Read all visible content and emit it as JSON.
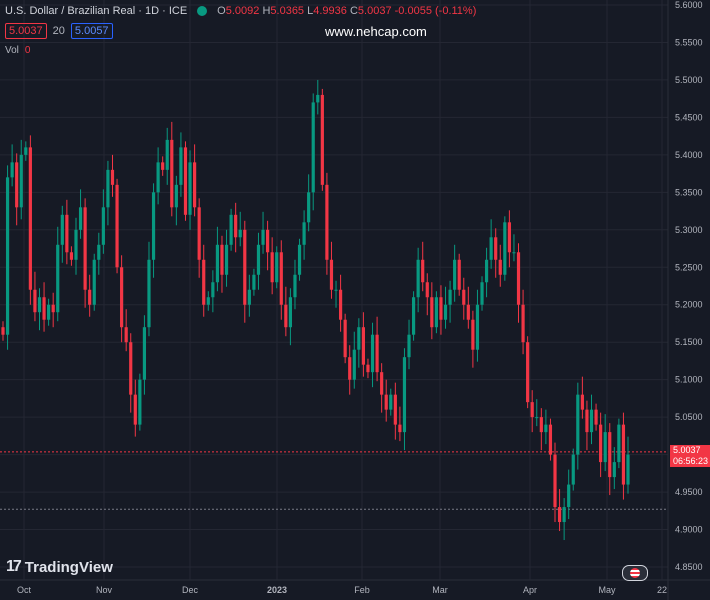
{
  "header": {
    "title": "U.S. Dollar / Brazilian Real · 1D · ICE",
    "open_label": "O",
    "open": "5.0092",
    "high_label": "H",
    "high": "5.0365",
    "low_label": "L",
    "low": "4.9936",
    "close_label": "C",
    "close": "5.0037",
    "change": "-0.0055 (-0.11%)"
  },
  "indicator": {
    "value_a": "5.0037",
    "period": "20",
    "value_b": "5.0057"
  },
  "volume": {
    "label": "Vol",
    "value": "0"
  },
  "watermark": "www.nehcap.com",
  "brand": "TradingView",
  "last_price": {
    "value": "5.0037",
    "countdown": "06:56:23"
  },
  "colors": {
    "up": "#089981",
    "down": "#f23645",
    "background": "#161a25",
    "grid": "#242733"
  },
  "chart_data": {
    "type": "candlestick",
    "title": "U.S. Dollar / Brazilian Real · 1D · ICE",
    "y_ticks": [
      "5.6000",
      "5.5500",
      "5.5000",
      "5.4500",
      "5.4000",
      "5.3500",
      "5.3000",
      "5.2500",
      "5.2000",
      "5.1500",
      "5.1000",
      "5.0500",
      "5.0000",
      "4.9500",
      "4.9000",
      "4.8500"
    ],
    "ylim": [
      4.85,
      5.6
    ],
    "x_ticks": [
      "Oct",
      "Nov",
      "Dec",
      "2023",
      "Feb",
      "Mar",
      "Apr",
      "May",
      "22"
    ],
    "horizontal_lines": [
      5.0037,
      4.927
    ],
    "closes": [
      5.16,
      5.37,
      5.39,
      5.33,
      5.4,
      5.41,
      5.22,
      5.19,
      5.21,
      5.18,
      5.2,
      5.19,
      5.28,
      5.32,
      5.27,
      5.26,
      5.3,
      5.33,
      5.22,
      5.2,
      5.26,
      5.28,
      5.33,
      5.38,
      5.36,
      5.25,
      5.17,
      5.15,
      5.08,
      5.04,
      5.1,
      5.17,
      5.26,
      5.35,
      5.39,
      5.38,
      5.42,
      5.33,
      5.36,
      5.41,
      5.32,
      5.39,
      5.33,
      5.26,
      5.2,
      5.21,
      5.23,
      5.28,
      5.24,
      5.28,
      5.32,
      5.29,
      5.3,
      5.2,
      5.22,
      5.24,
      5.28,
      5.3,
      5.27,
      5.23,
      5.27,
      5.2,
      5.17,
      5.21,
      5.24,
      5.28,
      5.31,
      5.35,
      5.47,
      5.48,
      5.36,
      5.26,
      5.22,
      5.22,
      5.18,
      5.13,
      5.1,
      5.14,
      5.17,
      5.12,
      5.11,
      5.16,
      5.11,
      5.08,
      5.06,
      5.08,
      5.04,
      5.03,
      5.13,
      5.16,
      5.21,
      5.26,
      5.23,
      5.21,
      5.17,
      5.21,
      5.18,
      5.2,
      5.22,
      5.26,
      5.22,
      5.2,
      5.18,
      5.14,
      5.2,
      5.23,
      5.26,
      5.29,
      5.26,
      5.24,
      5.31,
      5.27,
      5.27,
      5.2,
      5.15,
      5.07,
      5.05,
      5.05,
      5.03,
      5.04,
      5.0,
      4.93,
      4.91,
      4.93,
      4.96,
      5.0,
      5.08,
      5.06,
      5.03,
      5.06,
      5.04,
      4.99,
      5.03,
      4.97,
      4.99,
      5.04,
      4.96,
      5.0
    ]
  }
}
